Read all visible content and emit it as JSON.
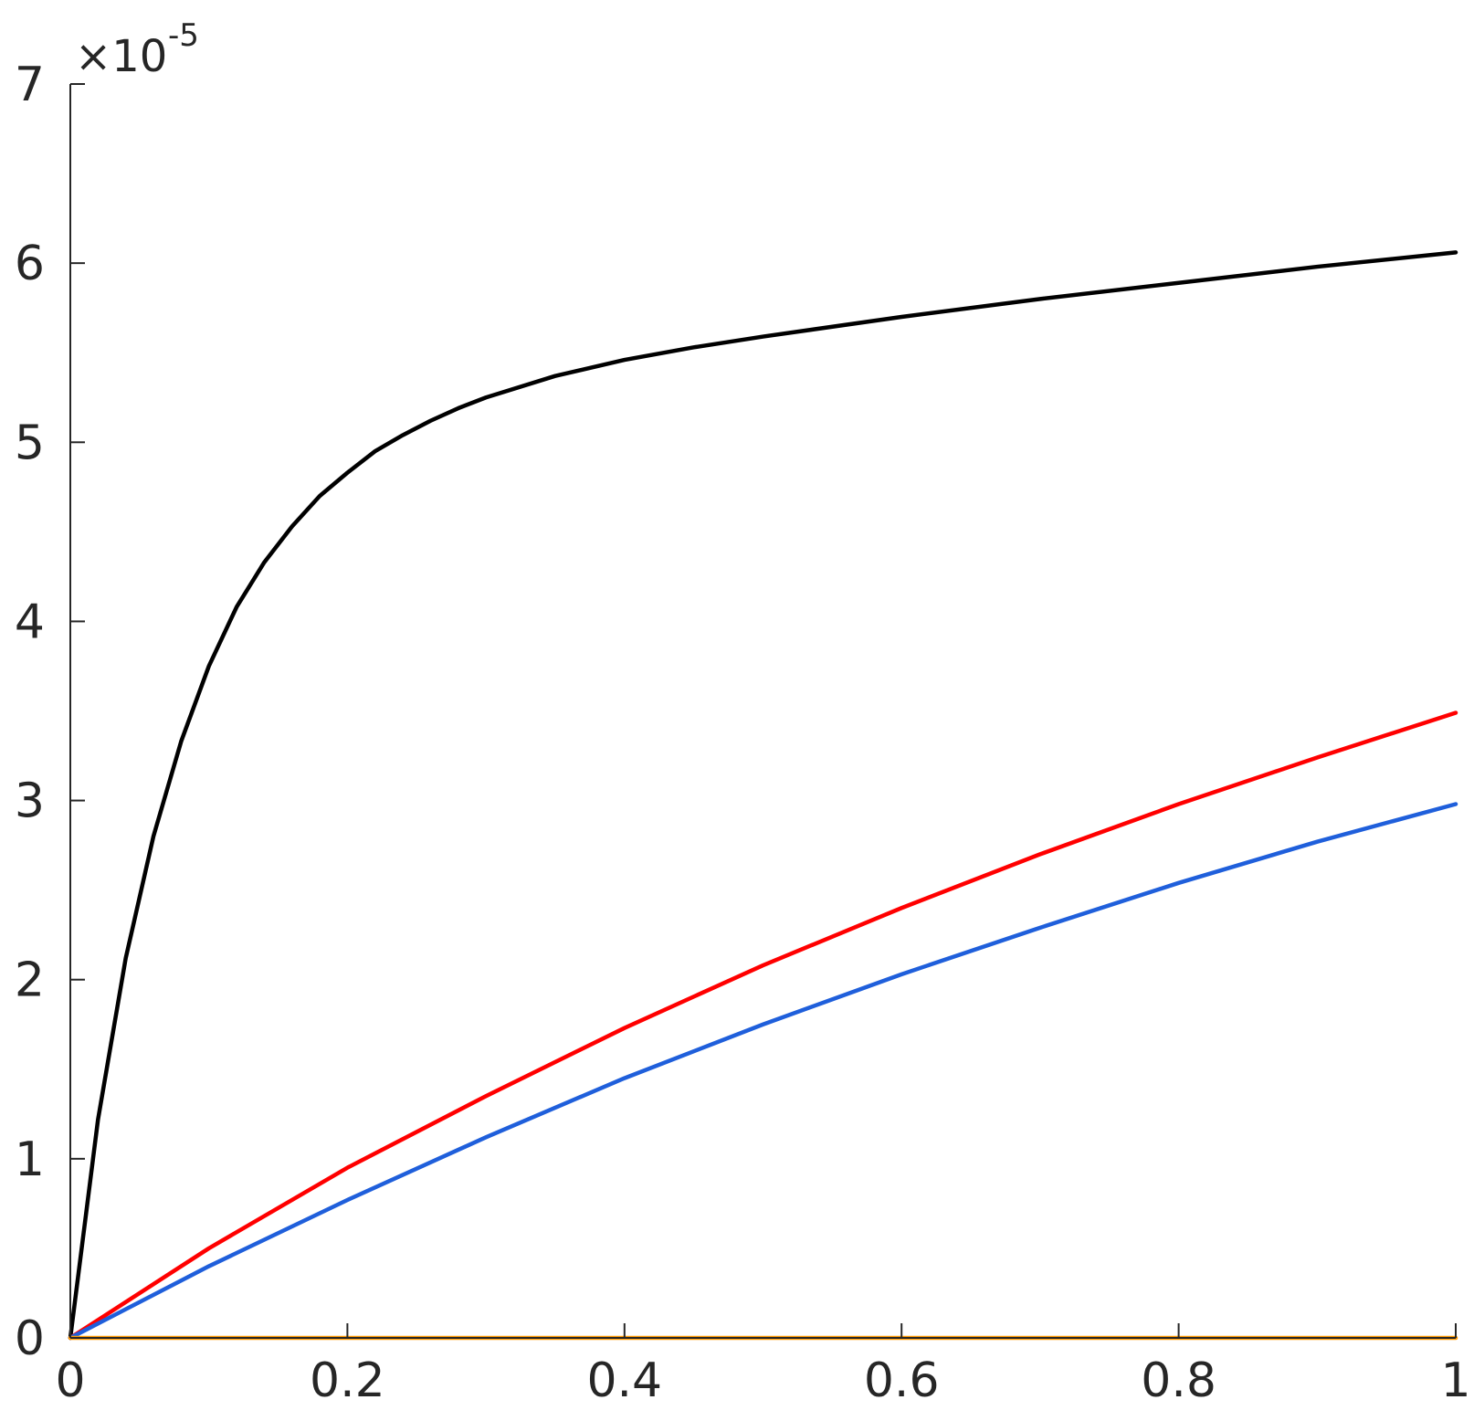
{
  "chart_data": {
    "type": "line",
    "title": "",
    "xlabel": "",
    "ylabel": "",
    "xlim": [
      0,
      1
    ],
    "ylim": [
      0,
      7
    ],
    "y_exponent_label": "×10",
    "y_exponent_value": "-5",
    "x_ticks": [
      {
        "value": 0,
        "label": "0"
      },
      {
        "value": 0.2,
        "label": "0.2"
      },
      {
        "value": 0.4,
        "label": "0.4"
      },
      {
        "value": 0.6,
        "label": "0.6"
      },
      {
        "value": 0.8,
        "label": "0.8"
      },
      {
        "value": 1,
        "label": "1"
      }
    ],
    "y_ticks": [
      {
        "value": 0,
        "label": "0"
      },
      {
        "value": 1,
        "label": "1"
      },
      {
        "value": 2,
        "label": "2"
      },
      {
        "value": 3,
        "label": "3"
      },
      {
        "value": 4,
        "label": "4"
      },
      {
        "value": 5,
        "label": "5"
      },
      {
        "value": 6,
        "label": "6"
      },
      {
        "value": 7,
        "label": "7"
      }
    ],
    "grid": false,
    "legend": "none",
    "series": [
      {
        "color": "#000000",
        "x": [
          0,
          0.02,
          0.04,
          0.06,
          0.08,
          0.1,
          0.12,
          0.14,
          0.16,
          0.18,
          0.2,
          0.22,
          0.24,
          0.26,
          0.28,
          0.3,
          0.35,
          0.4,
          0.45,
          0.5,
          0.6,
          0.7,
          0.8,
          0.9,
          1.0
        ],
        "y": [
          0,
          1.22,
          2.12,
          2.8,
          3.33,
          3.75,
          4.08,
          4.33,
          4.53,
          4.7,
          4.83,
          4.95,
          5.04,
          5.12,
          5.19,
          5.25,
          5.37,
          5.46,
          5.53,
          5.59,
          5.7,
          5.8,
          5.89,
          5.98,
          6.06
        ]
      },
      {
        "color": "#ff0000",
        "x": [
          0,
          0.1,
          0.2,
          0.3,
          0.4,
          0.5,
          0.6,
          0.7,
          0.8,
          0.9,
          1.0
        ],
        "y": [
          0,
          0.5,
          0.95,
          1.35,
          1.73,
          2.08,
          2.4,
          2.7,
          2.98,
          3.24,
          3.49
        ]
      },
      {
        "color": "#1f5fdb",
        "x": [
          0,
          0.1,
          0.2,
          0.3,
          0.4,
          0.5,
          0.6,
          0.7,
          0.8,
          0.9,
          1.0
        ],
        "y": [
          0,
          0.4,
          0.77,
          1.12,
          1.45,
          1.75,
          2.03,
          2.29,
          2.54,
          2.77,
          2.98
        ]
      },
      {
        "color": "#ff9900",
        "x": [
          0,
          1.0
        ],
        "y": [
          0,
          0
        ]
      }
    ]
  }
}
